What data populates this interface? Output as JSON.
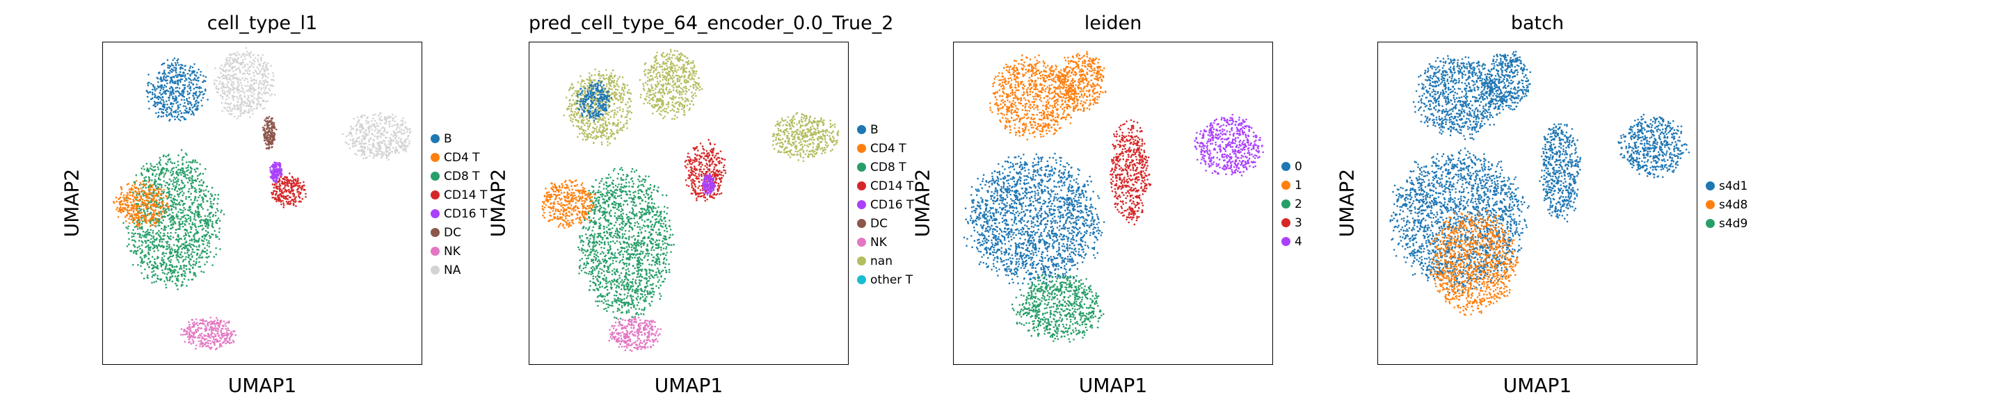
{
  "chart_data": [
    {
      "type": "scatter",
      "title": "cell_type_l1",
      "xlabel": "UMAP1",
      "ylabel": "UMAP2",
      "legend_placement": "right",
      "grid": false,
      "legend": [
        {
          "name": "B",
          "color": "#1f77b4"
        },
        {
          "name": "CD4 T",
          "color": "#ff7f0e"
        },
        {
          "name": "CD8 T",
          "color": "#279e68"
        },
        {
          "name": "CD14 T",
          "color": "#d62728"
        },
        {
          "name": "CD16 T",
          "color": "#aa40fc"
        },
        {
          "name": "DC",
          "color": "#8c564b"
        },
        {
          "name": "NK",
          "color": "#e377c2"
        },
        {
          "name": "NA",
          "color": "#d3d3d3"
        }
      ],
      "regions": [
        {
          "label": "CD8 T",
          "cx": 0.22,
          "cy": 0.55,
          "rx": 0.14,
          "ry": 0.2
        },
        {
          "label": "CD4 T",
          "cx": 0.12,
          "cy": 0.5,
          "rx": 0.08,
          "ry": 0.07
        },
        {
          "label": "NK",
          "cx": 0.33,
          "cy": 0.9,
          "rx": 0.08,
          "ry": 0.05
        },
        {
          "label": "B",
          "cx": 0.23,
          "cy": 0.15,
          "rx": 0.09,
          "ry": 0.09
        },
        {
          "label": "NA",
          "cx": 0.44,
          "cy": 0.13,
          "rx": 0.09,
          "ry": 0.1
        },
        {
          "label": "NA",
          "cx": 0.86,
          "cy": 0.29,
          "rx": 0.1,
          "ry": 0.07
        },
        {
          "label": "CD14 T",
          "cx": 0.58,
          "cy": 0.46,
          "rx": 0.05,
          "ry": 0.05
        },
        {
          "label": "CD16 T",
          "cx": 0.54,
          "cy": 0.4,
          "rx": 0.02,
          "ry": 0.03
        },
        {
          "label": "DC",
          "cx": 0.52,
          "cy": 0.28,
          "rx": 0.02,
          "ry": 0.05
        }
      ]
    },
    {
      "type": "scatter",
      "title": "pred_cell_type_64_encoder_0.0_True_2",
      "xlabel": "UMAP1",
      "ylabel": "UMAP2",
      "legend_placement": "right",
      "grid": false,
      "legend": [
        {
          "name": "B",
          "color": "#1f77b4"
        },
        {
          "name": "CD4 T",
          "color": "#ff7f0e"
        },
        {
          "name": "CD8 T",
          "color": "#279e68"
        },
        {
          "name": "CD14 T",
          "color": "#d62728"
        },
        {
          "name": "CD16 T",
          "color": "#aa40fc"
        },
        {
          "name": "DC",
          "color": "#8c564b"
        },
        {
          "name": "NK",
          "color": "#e377c2"
        },
        {
          "name": "nan",
          "color": "#b5bd61"
        },
        {
          "name": "other T",
          "color": "#17becf"
        }
      ],
      "regions": [
        {
          "label": "CD8 T",
          "cx": 0.3,
          "cy": 0.62,
          "rx": 0.14,
          "ry": 0.22
        },
        {
          "label": "CD4 T",
          "cx": 0.12,
          "cy": 0.5,
          "rx": 0.08,
          "ry": 0.07
        },
        {
          "label": "nan",
          "cx": 0.22,
          "cy": 0.2,
          "rx": 0.1,
          "ry": 0.11
        },
        {
          "label": "nan",
          "cx": 0.44,
          "cy": 0.13,
          "rx": 0.09,
          "ry": 0.1
        },
        {
          "label": "nan",
          "cx": 0.86,
          "cy": 0.29,
          "rx": 0.1,
          "ry": 0.07
        },
        {
          "label": "NK",
          "cx": 0.33,
          "cy": 0.9,
          "rx": 0.08,
          "ry": 0.05
        },
        {
          "label": "CD14 T",
          "cx": 0.55,
          "cy": 0.4,
          "rx": 0.06,
          "ry": 0.09
        },
        {
          "label": "CD16 T",
          "cx": 0.56,
          "cy": 0.44,
          "rx": 0.02,
          "ry": 0.03
        },
        {
          "label": "B",
          "cx": 0.2,
          "cy": 0.18,
          "rx": 0.05,
          "ry": 0.06
        }
      ]
    },
    {
      "type": "scatter",
      "title": "leiden",
      "xlabel": "UMAP1",
      "ylabel": "UMAP2",
      "legend_placement": "right",
      "grid": false,
      "legend": [
        {
          "name": "0",
          "color": "#1f77b4"
        },
        {
          "name": "1",
          "color": "#ff7f0e"
        },
        {
          "name": "2",
          "color": "#279e68"
        },
        {
          "name": "3",
          "color": "#d62728"
        },
        {
          "name": "4",
          "color": "#aa40fc"
        }
      ],
      "regions": [
        {
          "label": "0",
          "cx": 0.25,
          "cy": 0.55,
          "rx": 0.2,
          "ry": 0.19
        },
        {
          "label": "1",
          "cx": 0.25,
          "cy": 0.17,
          "rx": 0.13,
          "ry": 0.12
        },
        {
          "label": "1",
          "cx": 0.4,
          "cy": 0.12,
          "rx": 0.07,
          "ry": 0.09
        },
        {
          "label": "2",
          "cx": 0.33,
          "cy": 0.82,
          "rx": 0.13,
          "ry": 0.1
        },
        {
          "label": "3",
          "cx": 0.55,
          "cy": 0.4,
          "rx": 0.06,
          "ry": 0.15
        },
        {
          "label": "4",
          "cx": 0.86,
          "cy": 0.32,
          "rx": 0.1,
          "ry": 0.09
        }
      ]
    },
    {
      "type": "scatter",
      "title": "batch",
      "xlabel": "UMAP1",
      "ylabel": "UMAP2",
      "legend_placement": "right",
      "grid": false,
      "legend": [
        {
          "name": "s4d1",
          "color": "#1f77b4"
        },
        {
          "name": "s4d8",
          "color": "#ff7f0e"
        },
        {
          "name": "s4d9",
          "color": "#279e68"
        }
      ],
      "regions": [
        {
          "label": "s4d1",
          "cx": 0.25,
          "cy": 0.55,
          "rx": 0.2,
          "ry": 0.2
        },
        {
          "label": "s4d8",
          "cx": 0.3,
          "cy": 0.68,
          "rx": 0.13,
          "ry": 0.15
        },
        {
          "label": "s4d1",
          "cx": 0.25,
          "cy": 0.17,
          "rx": 0.13,
          "ry": 0.12
        },
        {
          "label": "s4d1",
          "cx": 0.4,
          "cy": 0.12,
          "rx": 0.07,
          "ry": 0.09
        },
        {
          "label": "s4d1",
          "cx": 0.57,
          "cy": 0.4,
          "rx": 0.06,
          "ry": 0.15
        },
        {
          "label": "s4d1",
          "cx": 0.86,
          "cy": 0.32,
          "rx": 0.1,
          "ry": 0.09
        }
      ]
    }
  ]
}
